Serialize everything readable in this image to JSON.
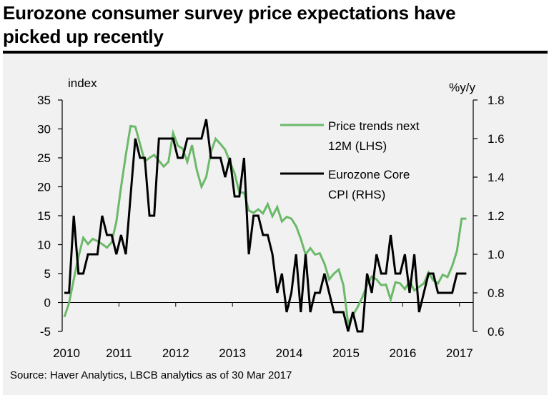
{
  "title": {
    "line1": "Eurozone consumer survey price expectations have",
    "line2": "picked up recently"
  },
  "source": "Source: Haver Analytics, LBCB analytics as of 30 Mar 2017",
  "chart_data": {
    "type": "line",
    "title": "Eurozone consumer survey price expectations have picked up recently",
    "xlabel": "",
    "ylabel_left": "index",
    "ylabel_right": "%y/y",
    "x_ticks": [
      "2010",
      "2011",
      "2012",
      "2013",
      "2014",
      "2015",
      "2016",
      "2017"
    ],
    "x_start": "2010-01",
    "frequency": "monthly",
    "ylim_left": [
      -5,
      35
    ],
    "yticks_left": [
      "-5",
      "0",
      "5",
      "10",
      "15",
      "20",
      "25",
      "30",
      "35"
    ],
    "ylim_right": [
      0.6,
      1.8
    ],
    "yticks_right": [
      "0.6",
      "0.8",
      "1.0",
      "1.2",
      "1.4",
      "1.6",
      "1.8"
    ],
    "grid": false,
    "legend_position": "top-right",
    "series": [
      {
        "name": "Price trends next 12M (LHS)",
        "legend_line1": "Price trends next",
        "legend_line2": "12M (LHS)",
        "axis": "left",
        "color": "#6cb96a",
        "values": [
          -2.5,
          -0.1,
          4,
          7.9,
          11.2,
          10.1,
          11,
          10.6,
          10.1,
          9.5,
          10.4,
          14,
          20,
          25.5,
          30.5,
          30.4,
          27.4,
          24.4,
          25,
          25.5,
          24.5,
          23.5,
          24.3,
          29.3,
          27.1,
          26.6,
          24.3,
          27.2,
          22.9,
          20,
          21.7,
          26,
          28.3,
          27.4,
          26.4,
          24.3,
          22.3,
          19,
          19,
          15.9,
          15.5,
          16.1,
          15.4,
          17,
          14.9,
          16.5,
          14,
          14.8,
          14.5,
          13.2,
          11,
          8.3,
          9.4,
          8.3,
          8.5,
          6.7,
          4,
          5,
          5.7,
          3,
          -3.7,
          -2.2,
          -0.8,
          0.9,
          3,
          4.5,
          4,
          3,
          3.1,
          0.5,
          3.5,
          3.3,
          2.3,
          3.7,
          2.1,
          2.7,
          3.3,
          5.2,
          3.8,
          3.3,
          4.8,
          4.4,
          6.3,
          8.9,
          14.5,
          14.5
        ]
      },
      {
        "name": "Eurozone Core CPI (RHS)",
        "legend_line1": "Eurozone Core",
        "legend_line2": "CPI (RHS)",
        "axis": "right",
        "color": "#000000",
        "values": [
          0.8,
          0.8,
          1.2,
          0.9,
          0.9,
          1.0,
          1.0,
          1.0,
          1.2,
          1.1,
          1.1,
          1.0,
          1.1,
          1.0,
          1.3,
          1.6,
          1.5,
          1.5,
          1.2,
          1.2,
          1.6,
          1.6,
          1.6,
          1.6,
          1.5,
          1.5,
          1.6,
          1.6,
          1.6,
          1.6,
          1.7,
          1.5,
          1.5,
          1.5,
          1.4,
          1.5,
          1.3,
          1.3,
          1.5,
          1.0,
          1.2,
          1.2,
          1.1,
          1.1,
          1.0,
          0.8,
          0.9,
          0.7,
          0.8,
          1.0,
          0.7,
          1.0,
          0.7,
          0.8,
          0.8,
          0.9,
          0.8,
          0.7,
          0.7,
          0.7,
          0.6,
          0.7,
          0.6,
          0.6,
          0.9,
          0.8,
          1.0,
          0.9,
          0.9,
          1.1,
          0.9,
          0.9,
          1.0,
          0.8,
          1.0,
          0.7,
          0.8,
          0.9,
          0.9,
          0.8,
          0.8,
          0.8,
          0.8,
          0.9,
          0.9,
          0.9
        ]
      }
    ]
  }
}
